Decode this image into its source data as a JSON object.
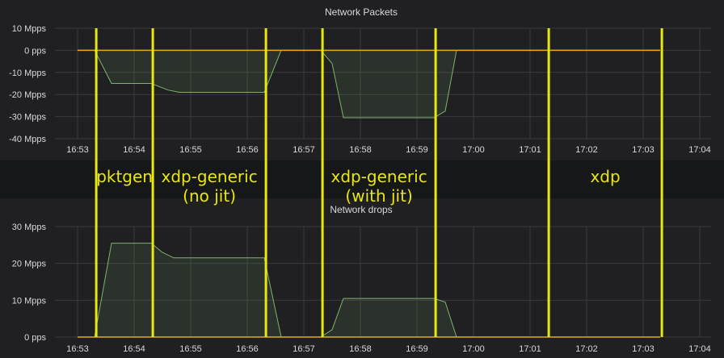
{
  "chart_data": [
    {
      "type": "area",
      "title": "Network Packets",
      "x_ticks": [
        "16:53",
        "16:54",
        "16:55",
        "16:56",
        "16:57",
        "16:58",
        "16:59",
        "17:00",
        "17:01",
        "17:02",
        "17:03",
        "17:04"
      ],
      "y_ticks": [
        "10 Mpps",
        "0 pps",
        "-10 Mpps",
        "-20 Mpps",
        "-30 Mpps",
        "-40 Mpps"
      ],
      "ylim": [
        -40,
        10
      ],
      "xlim": [
        "16:52.6",
        "17:04.2"
      ],
      "grid": true,
      "series": [
        {
          "color": "#7eb26d",
          "x": [
            "16:53.0",
            "16:53.3",
            "16:53.6",
            "16:54.3",
            "16:54.6",
            "16:54.8",
            "16:56.3",
            "16:56.6",
            "16:57.3",
            "16:57.5",
            "16:57.7",
            "16:59.3",
            "16:59.5",
            "16:59.7",
            "17:03.3"
          ],
          "y": [
            0,
            0,
            -15,
            -15,
            -18,
            -19,
            -19,
            0,
            0,
            -6,
            -30.5,
            -30.5,
            -27.5,
            0,
            0
          ]
        }
      ],
      "baseline": {
        "value": 0,
        "color": "#e5ac0e"
      }
    },
    {
      "type": "area",
      "title": "Network drops",
      "x_ticks": [
        "16:53",
        "16:54",
        "16:55",
        "16:56",
        "16:57",
        "16:58",
        "16:59",
        "17:00",
        "17:01",
        "17:02",
        "17:03",
        "17:04"
      ],
      "y_ticks": [
        "30 Mpps",
        "20 Mpps",
        "10 Mpps",
        "0 pps"
      ],
      "ylim": [
        0,
        30
      ],
      "xlim": [
        "16:52.6",
        "17:04.2"
      ],
      "grid": true,
      "series": [
        {
          "color": "#7eb26d",
          "x": [
            "16:53.0",
            "16:53.3",
            "16:53.6",
            "16:54.3",
            "16:54.5",
            "16:54.7",
            "16:56.3",
            "16:56.6",
            "16:57.3",
            "16:57.5",
            "16:57.7",
            "16:59.3",
            "16:59.5",
            "16:59.7",
            "17:03.3"
          ],
          "y": [
            0,
            0,
            25.5,
            25.5,
            23,
            21.5,
            21.5,
            0,
            0,
            2,
            10.5,
            10.5,
            9.5,
            0,
            0
          ]
        }
      ],
      "baseline": {
        "value": 0,
        "color": "#e5ac0e"
      }
    }
  ],
  "annotations": {
    "markers": [
      "16:53.33",
      "16:54.33",
      "16:56.33",
      "16:57.33",
      "16:59.33",
      "17:01.33",
      "17:03.33"
    ],
    "labels": [
      {
        "lines": [
          "pktgen"
        ],
        "x": "16:53.83"
      },
      {
        "lines": [
          "xdp-generic",
          "(no jit)"
        ],
        "x": "16:55.33"
      },
      {
        "lines": [
          "xdp-generic",
          "(with jit)"
        ],
        "x": "16:58.33"
      },
      {
        "lines": [
          "xdp"
        ],
        "x": "17:02.33"
      }
    ],
    "color": "#e8e80e"
  },
  "colors": {
    "background": "#202022",
    "band": "#161719",
    "grid": "#3a3a3c",
    "text": "#d8d9da",
    "line": "#7eb26d",
    "fill": "rgba(126,178,109,0.13)",
    "baseline": "#e5ac0e",
    "marker": "#e8e80e"
  }
}
